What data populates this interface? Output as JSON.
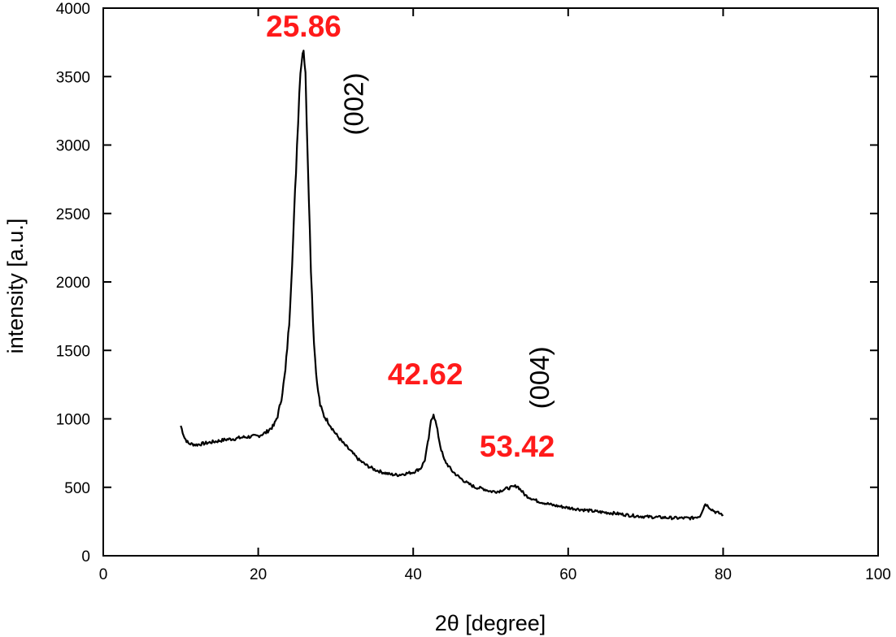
{
  "chart_data": {
    "type": "line",
    "title": "",
    "xlabel": "2θ [degree]",
    "ylabel": "intensity [a.u.]",
    "xlim": [
      0,
      100
    ],
    "ylim": [
      0,
      4000
    ],
    "x_ticks": [
      0,
      20,
      40,
      60,
      80,
      100
    ],
    "y_ticks": [
      0,
      500,
      1000,
      1500,
      2000,
      2500,
      3000,
      3500,
      4000
    ],
    "grid": false,
    "legend": "none",
    "line_color": "#000000",
    "annotation_color": "#ff1a1a",
    "series": [
      {
        "x": [
          10.0,
          10.5,
          11.0,
          12.0,
          13.0,
          14.0,
          15.0,
          16.0,
          17.0,
          18.0,
          19.0,
          20.0,
          21.0,
          22.0,
          22.5,
          23.0,
          23.5,
          24.0,
          24.5,
          25.0,
          25.3,
          25.6,
          25.86,
          26.1,
          26.4,
          26.8,
          27.2,
          27.6,
          28.0,
          28.5,
          29.0,
          30.0,
          31.0,
          32.0,
          33.0,
          34.0,
          35.0,
          36.0,
          37.0,
          38.0,
          39.0,
          40.0,
          41.0,
          41.5,
          42.0,
          42.3,
          42.62,
          43.0,
          43.5,
          44.0,
          45.0,
          46.0,
          47.0,
          48.0,
          49.0,
          50.0,
          51.0,
          52.0,
          53.42,
          54.5,
          56.0,
          58.0,
          60.0,
          62.0,
          64.0,
          66.0,
          68.0,
          70.0,
          72.0,
          74.0,
          76.0,
          77.0,
          77.7,
          78.5,
          79.0,
          80.0
        ],
        "y": [
          950,
          860,
          820,
          810,
          820,
          830,
          840,
          850,
          855,
          865,
          870,
          875,
          900,
          950,
          1020,
          1150,
          1350,
          1700,
          2300,
          3000,
          3400,
          3650,
          3720,
          3500,
          2900,
          2100,
          1550,
          1250,
          1100,
          1020,
          980,
          890,
          820,
          760,
          700,
          660,
          630,
          610,
          595,
          590,
          600,
          610,
          640,
          700,
          860,
          980,
          1040,
          950,
          800,
          700,
          620,
          570,
          530,
          500,
          490,
          470,
          470,
          490,
          510,
          440,
          400,
          370,
          350,
          335,
          320,
          310,
          295,
          285,
          280,
          275,
          275,
          290,
          380,
          340,
          320,
          300
        ]
      }
    ],
    "peak_labels": [
      {
        "text": "25.86",
        "x": 25.86,
        "y": 3720
      },
      {
        "text": "42.62",
        "x": 42.62,
        "y": 1040
      },
      {
        "text": "53.42",
        "x": 53.42,
        "y": 510
      }
    ],
    "plane_labels": [
      {
        "text": "(002)",
        "x": 33.5,
        "y": 3300
      },
      {
        "text": "(004)",
        "x": 57.5,
        "y": 1300
      }
    ]
  }
}
